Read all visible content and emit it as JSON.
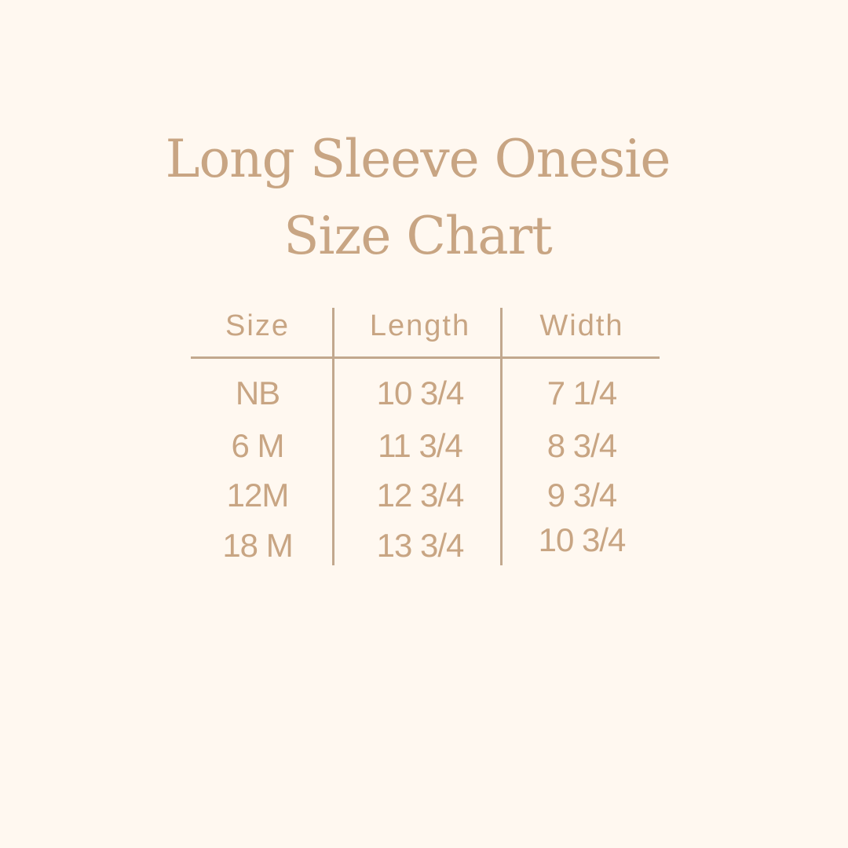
{
  "title": {
    "line1": "Long Sleeve Onesie",
    "line2": "Size Chart"
  },
  "table": {
    "headers": [
      "Size",
      "Length",
      "Width"
    ],
    "rows": [
      [
        "NB",
        "10 3/4",
        "7 1/4"
      ],
      [
        "6 M",
        "11 3/4",
        "8 3/4"
      ],
      [
        "12M",
        "12 3/4",
        "9 3/4"
      ],
      [
        "18 M",
        "13 3/4",
        "10 3/4"
      ]
    ]
  },
  "colors": {
    "background": "#fff8f0",
    "text": "#c8a583",
    "lines": "#c2a88e"
  }
}
